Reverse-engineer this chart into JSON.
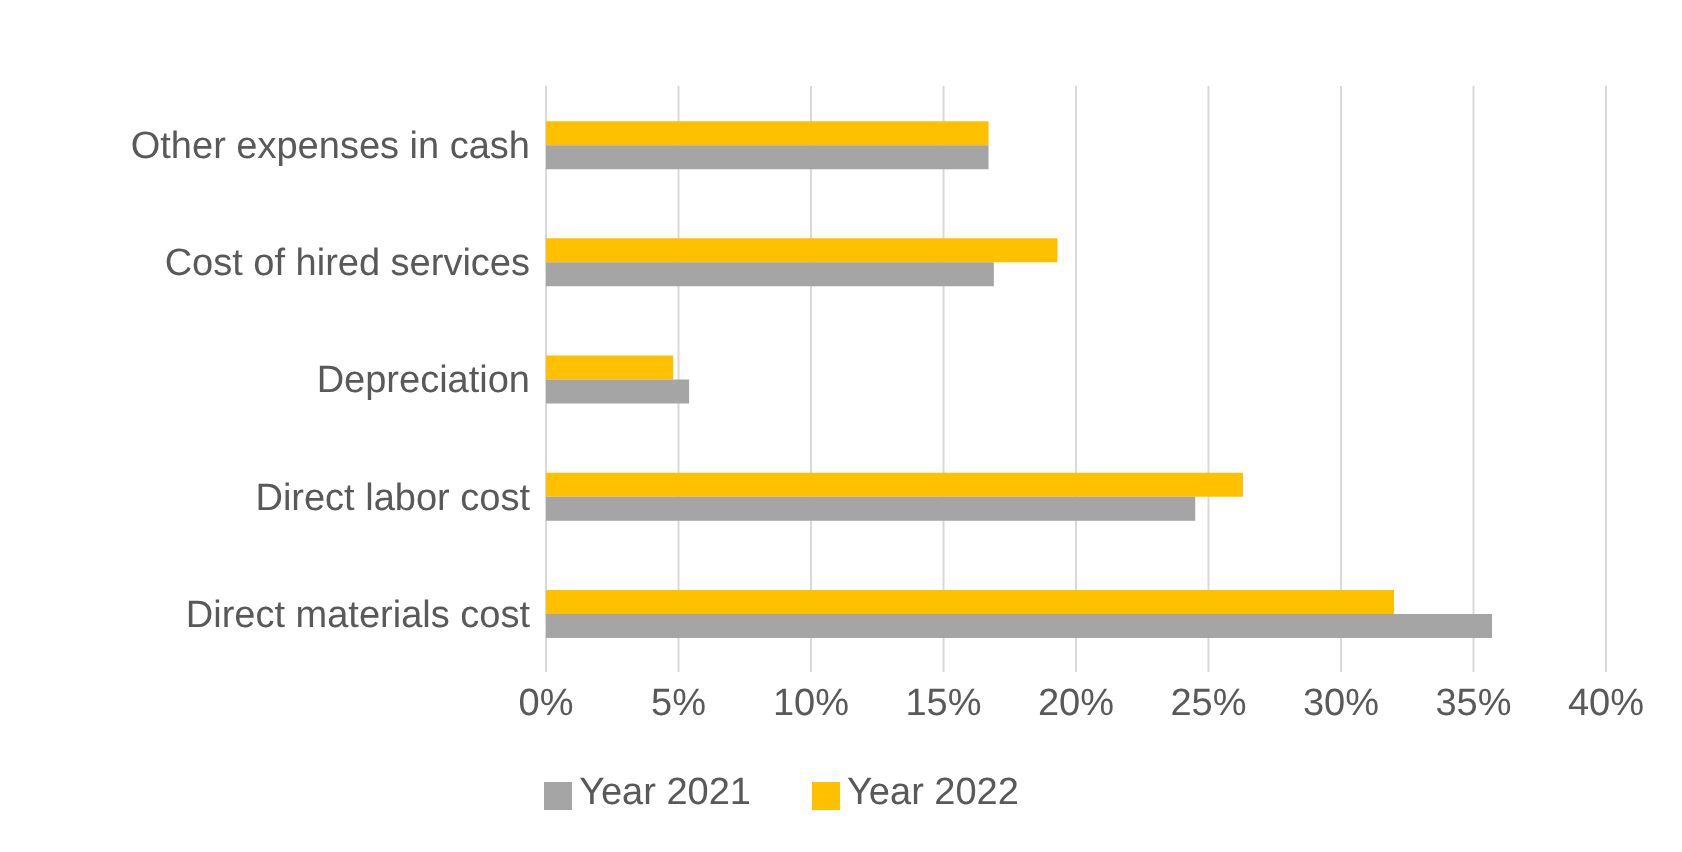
{
  "chart_data": {
    "type": "bar",
    "orientation": "horizontal",
    "categories": [
      "Other expenses in cash",
      "Cost of hired services",
      "Depreciation",
      "Direct labor cost",
      "Direct materials cost"
    ],
    "series": [
      {
        "name": "Year 2022",
        "color": "#ffc000",
        "values": [
          16.7,
          19.3,
          4.8,
          26.3,
          32.0
        ]
      },
      {
        "name": "Year 2021",
        "color": "#a5a5a5",
        "values": [
          16.7,
          16.9,
          5.4,
          24.5,
          35.7
        ]
      }
    ],
    "xlim": [
      0,
      40
    ],
    "xticks": [
      {
        "value": 0,
        "label": "0%"
      },
      {
        "value": 5,
        "label": "5%"
      },
      {
        "value": 10,
        "label": "10%"
      },
      {
        "value": 15,
        "label": "15%"
      },
      {
        "value": 20,
        "label": "20%"
      },
      {
        "value": 25,
        "label": "25%"
      },
      {
        "value": 30,
        "label": "30%"
      },
      {
        "value": 35,
        "label": "35%"
      },
      {
        "value": 40,
        "label": "40%"
      }
    ],
    "grid": "x",
    "legend": "bottom"
  }
}
